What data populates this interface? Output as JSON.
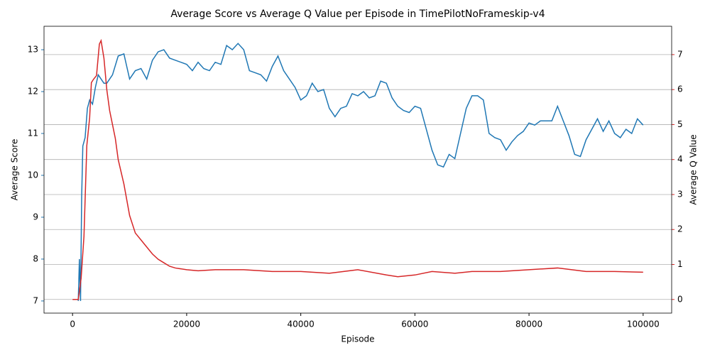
{
  "chart_data": {
    "type": "line",
    "title": "Average Score vs Average Q Value per Episode in TimePilotNoFrameskip-v4",
    "xlabel": "Episode",
    "ylabel": "Average Score",
    "y2label": "Average Q Value",
    "xlim": [
      -5000,
      105000
    ],
    "xticks": [
      0,
      20000,
      40000,
      60000,
      80000,
      100000
    ],
    "ylim": [
      6.71,
      13.56
    ],
    "yticks": [
      7,
      8,
      9,
      10,
      11,
      12,
      13
    ],
    "y2lim": [
      -0.39,
      7.81
    ],
    "y2ticks": [
      0,
      1,
      2,
      3,
      4,
      5,
      6,
      7
    ],
    "grid": "y2",
    "series": [
      {
        "name": "Average Score",
        "color": "#1f77b4",
        "axis": "y",
        "x": [
          1000,
          1200,
          1400,
          1600,
          1800,
          2200,
          2600,
          3000,
          3500,
          4000,
          4500,
          5000,
          5500,
          6000,
          7000,
          8000,
          9000,
          9500,
          10000,
          11000,
          12000,
          13000,
          14000,
          15000,
          16000,
          17000,
          18000,
          19000,
          20000,
          21000,
          22000,
          23000,
          24000,
          25000,
          26000,
          27000,
          28000,
          29000,
          30000,
          31000,
          32000,
          33000,
          34000,
          35000,
          36000,
          37000,
          38000,
          39000,
          40000,
          41000,
          42000,
          43000,
          44000,
          45000,
          46000,
          47000,
          48000,
          49000,
          50000,
          51000,
          52000,
          53000,
          54000,
          55000,
          56000,
          57000,
          58000,
          59000,
          60000,
          61000,
          62000,
          63000,
          64000,
          65000,
          66000,
          67000,
          68000,
          69000,
          70000,
          71000,
          72000,
          73000,
          74000,
          75000,
          76000,
          77000,
          78000,
          79000,
          80000,
          81000,
          82000,
          83000,
          84000,
          85000,
          86000,
          87000,
          88000,
          89000,
          90000,
          91000,
          92000,
          93000,
          94000,
          95000,
          96000,
          97000,
          98000,
          99000,
          100000
        ],
        "values": [
          7.0,
          8.0,
          7.0,
          9.5,
          10.7,
          10.9,
          11.6,
          11.8,
          11.7,
          12.1,
          12.4,
          12.3,
          12.2,
          12.2,
          12.4,
          12.85,
          12.9,
          12.6,
          12.3,
          12.5,
          12.55,
          12.3,
          12.75,
          12.95,
          13.0,
          12.8,
          12.75,
          12.7,
          12.65,
          12.5,
          12.7,
          12.55,
          12.5,
          12.7,
          12.65,
          13.1,
          13.0,
          13.15,
          13.0,
          12.5,
          12.45,
          12.4,
          12.25,
          12.6,
          12.85,
          12.5,
          12.3,
          12.1,
          11.8,
          11.9,
          12.2,
          12.0,
          12.05,
          11.6,
          11.4,
          11.6,
          11.65,
          11.95,
          11.9,
          12.0,
          11.85,
          11.9,
          12.25,
          12.2,
          11.85,
          11.65,
          11.55,
          11.5,
          11.65,
          11.6,
          11.1,
          10.6,
          10.25,
          10.2,
          10.5,
          10.4,
          11.0,
          11.6,
          11.9,
          11.9,
          11.8,
          11.0,
          10.9,
          10.85,
          10.6,
          10.8,
          10.95,
          11.05,
          11.25,
          11.2,
          11.3,
          11.3,
          11.3,
          11.65,
          11.3,
          10.95,
          10.5,
          10.45,
          10.85,
          11.1,
          11.35,
          11.05,
          11.3,
          11.0,
          10.9,
          11.1,
          11.0,
          11.35,
          11.2
        ]
      },
      {
        "name": "Average Q Value",
        "color": "#d62728",
        "axis": "y2",
        "x": [
          0,
          1000,
          1500,
          2000,
          2500,
          3000,
          3300,
          3700,
          4200,
          4700,
          5000,
          5500,
          6000,
          6500,
          7000,
          7500,
          8000,
          9000,
          10000,
          11000,
          12000,
          13000,
          14000,
          15000,
          16000,
          17000,
          18000,
          20000,
          22000,
          25000,
          30000,
          35000,
          40000,
          45000,
          50000,
          55000,
          57000,
          60000,
          63000,
          67000,
          70000,
          75000,
          80000,
          85000,
          90000,
          95000,
          100000
        ],
        "values": [
          0,
          0,
          0.6,
          1.8,
          4.4,
          5.2,
          6.2,
          6.3,
          6.4,
          7.3,
          7.4,
          6.9,
          6.0,
          5.4,
          5.0,
          4.6,
          4.0,
          3.3,
          2.4,
          1.9,
          1.7,
          1.5,
          1.3,
          1.15,
          1.05,
          0.95,
          0.9,
          0.85,
          0.82,
          0.85,
          0.85,
          0.8,
          0.8,
          0.75,
          0.85,
          0.7,
          0.65,
          0.7,
          0.8,
          0.75,
          0.8,
          0.8,
          0.85,
          0.9,
          0.8,
          0.8,
          0.78
        ]
      }
    ]
  }
}
